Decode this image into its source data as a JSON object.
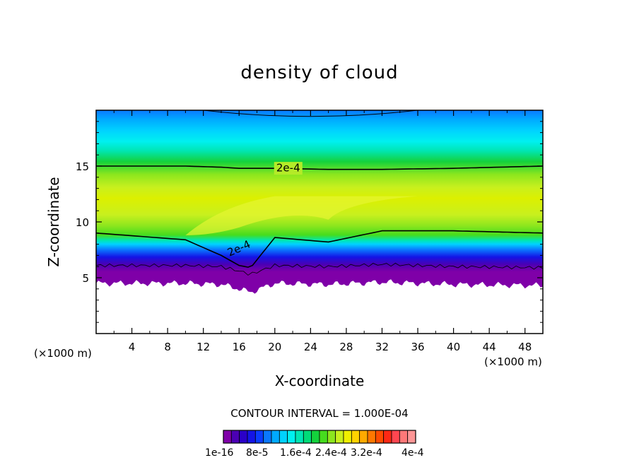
{
  "chart_data": {
    "type": "heatmap",
    "title": "density of cloud",
    "xlabel": "X-coordinate",
    "ylabel": "Z-coordinate",
    "x_unit": "(×1000 m)",
    "xlim": [
      0,
      50
    ],
    "ylim": [
      0,
      20
    ],
    "x_ticks": [
      4,
      8,
      12,
      16,
      20,
      24,
      28,
      32,
      36,
      40,
      44,
      48
    ],
    "y_ticks": [
      5,
      10,
      15
    ],
    "contour_labels": [
      "2e-4",
      "2e-4"
    ],
    "contour_interval_text": "CONTOUR INTERVAL = 1.000E-04",
    "colorbar_labels": [
      "1e-16",
      "8e-5",
      "1.6e-4",
      "2.4e-4",
      "3.2e-4",
      "4e-4"
    ],
    "colorbar_colors": [
      "#7f00a8",
      "#4b00b4",
      "#2a00c8",
      "#1414e6",
      "#0a3cff",
      "#0a78ff",
      "#00aaff",
      "#00d2ff",
      "#00f0f0",
      "#00e6b4",
      "#00dc78",
      "#14d23c",
      "#46dc1e",
      "#8ce61e",
      "#c8f01e",
      "#f0f000",
      "#ffd200",
      "#ffaa00",
      "#ff7800",
      "#ff4b00",
      "#ff2814",
      "#ff4650",
      "#ff7878",
      "#ff9696"
    ],
    "cloud_profile": {
      "x_km": [
        0,
        10,
        14,
        16,
        17.3,
        20,
        26,
        32,
        40,
        50
      ],
      "lower_contour_z": [
        9.0,
        8.4,
        7.0,
        6.1,
        5.9,
        8.6,
        8.2,
        9.2,
        9.2,
        9.0
      ],
      "upper_contour_z": [
        15.0,
        15.0,
        14.9,
        14.8,
        14.8,
        14.8,
        14.7,
        14.7,
        14.8,
        15.0
      ],
      "cloud_base_z": [
        4.5,
        4.5,
        4.4,
        4.0,
        3.7,
        4.5,
        4.4,
        4.6,
        4.4,
        4.3
      ]
    }
  }
}
